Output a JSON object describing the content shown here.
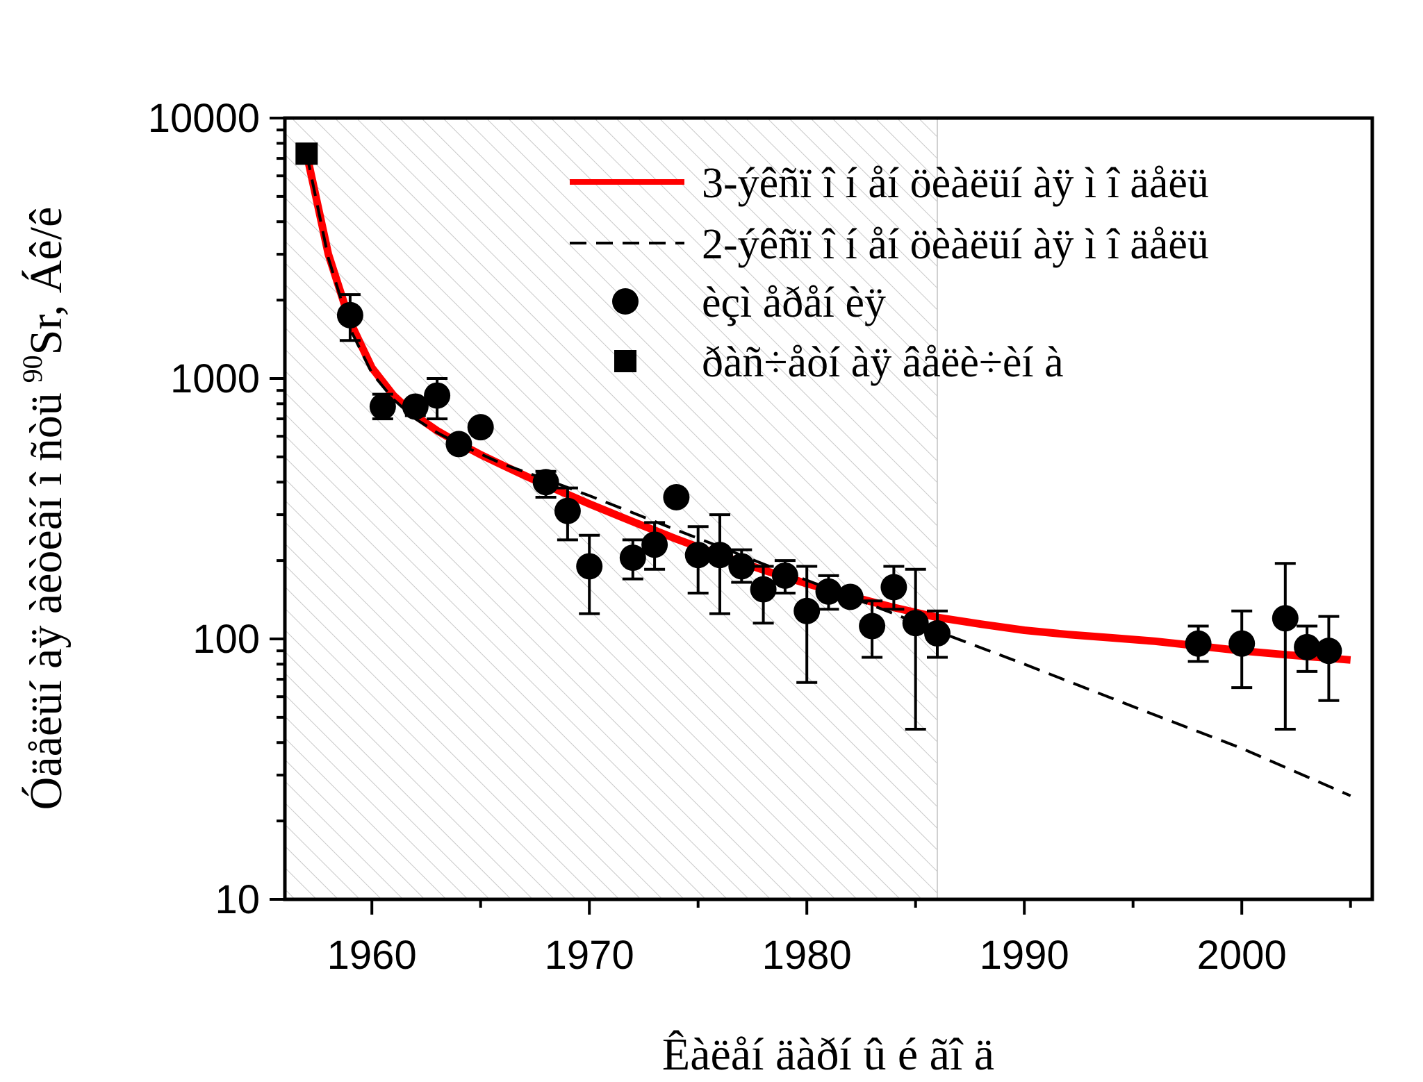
{
  "chart_data": {
    "type": "scatter",
    "title": "",
    "xlabel": "Êàëåí äàðí û é ãî ä",
    "ylabel": "Óäåëüí àÿ àêòèâí î ñòü",
    "ylabel_isotope_mass": "90",
    "ylabel_tail": "Sr, Áê/ê",
    "x_range": [
      1956,
      2006
    ],
    "x_ticks": [
      1960,
      1970,
      1980,
      1990,
      2000
    ],
    "y_scale": "log",
    "y_range": [
      10,
      10000
    ],
    "y_ticks": [
      10,
      100,
      1000,
      10000
    ],
    "grid": false,
    "hatched_region_x": [
      1956,
      1986
    ],
    "legend_position": "top-right",
    "series": [
      {
        "name": "3-ýêñï î í åí öèàëüí àÿ ì î äåëü",
        "kind": "line",
        "style": "solid",
        "color": "#ff0000",
        "x": [
          1957,
          1958,
          1959,
          1960,
          1961,
          1962,
          1963,
          1964,
          1965,
          1966,
          1967,
          1968,
          1970,
          1972,
          1974,
          1976,
          1978,
          1980,
          1982,
          1984,
          1986,
          1988,
          1990,
          1992,
          1994,
          1996,
          1998,
          2000,
          2002,
          2005
        ],
        "y": [
          7300,
          3000,
          1650,
          1100,
          860,
          720,
          630,
          565,
          510,
          465,
          425,
          390,
          330,
          282,
          242,
          210,
          184,
          163,
          146,
          132,
          121,
          114,
          108,
          104,
          101,
          98,
          94,
          90,
          87,
          83
        ]
      },
      {
        "name": "2-ýêñï î í åí öèàëüí àÿ ì î äåëü",
        "kind": "line",
        "style": "dashed",
        "color": "#000000",
        "x": [
          1957,
          1958,
          1959,
          1960,
          1961,
          1962,
          1963,
          1964,
          1966,
          1968,
          1970,
          1972,
          1974,
          1976,
          1978,
          1980,
          1982,
          1984,
          1986,
          1990,
          1995,
          2000,
          2005
        ],
        "y": [
          7300,
          2900,
          1550,
          1050,
          830,
          700,
          620,
          560,
          470,
          410,
          355,
          305,
          262,
          226,
          194,
          168,
          145,
          125,
          107,
          80,
          55,
          38,
          25
        ]
      },
      {
        "name": "èçì åðåí èÿ",
        "kind": "points",
        "marker": "circle",
        "color": "#000000",
        "points": [
          {
            "x": 1959,
            "y": 1750,
            "lo": 1400,
            "hi": 2100
          },
          {
            "x": 1960.5,
            "y": 780,
            "lo": 700,
            "hi": 870
          },
          {
            "x": 1962,
            "y": 780,
            "lo": 720,
            "hi": 830
          },
          {
            "x": 1963,
            "y": 860,
            "lo": 700,
            "hi": 1000
          },
          {
            "x": 1964,
            "y": 560
          },
          {
            "x": 1965,
            "y": 650
          },
          {
            "x": 1968,
            "y": 400,
            "lo": 350,
            "hi": 440
          },
          {
            "x": 1969,
            "y": 310,
            "lo": 240,
            "hi": 380
          },
          {
            "x": 1970,
            "y": 190,
            "lo": 125,
            "hi": 250
          },
          {
            "x": 1972,
            "y": 205,
            "lo": 170,
            "hi": 240
          },
          {
            "x": 1973,
            "y": 230,
            "lo": 185,
            "hi": 280
          },
          {
            "x": 1974,
            "y": 350
          },
          {
            "x": 1975,
            "y": 210,
            "lo": 150,
            "hi": 270
          },
          {
            "x": 1976,
            "y": 210,
            "lo": 125,
            "hi": 300
          },
          {
            "x": 1977,
            "y": 190,
            "lo": 165,
            "hi": 220
          },
          {
            "x": 1978,
            "y": 155,
            "lo": 115,
            "hi": 190
          },
          {
            "x": 1979,
            "y": 175,
            "lo": 150,
            "hi": 200
          },
          {
            "x": 1980,
            "y": 128,
            "lo": 68,
            "hi": 190
          },
          {
            "x": 1981,
            "y": 152,
            "lo": 130,
            "hi": 175
          },
          {
            "x": 1982,
            "y": 145
          },
          {
            "x": 1983,
            "y": 112,
            "lo": 85,
            "hi": 140
          },
          {
            "x": 1984,
            "y": 158,
            "lo": 130,
            "hi": 190
          },
          {
            "x": 1985,
            "y": 115,
            "lo": 45,
            "hi": 185
          },
          {
            "x": 1986,
            "y": 105,
            "lo": 85,
            "hi": 128
          },
          {
            "x": 1998,
            "y": 96,
            "lo": 82,
            "hi": 112
          },
          {
            "x": 2000,
            "y": 96,
            "lo": 65,
            "hi": 128
          },
          {
            "x": 2002,
            "y": 120,
            "lo": 45,
            "hi": 195
          },
          {
            "x": 2003,
            "y": 93,
            "lo": 75,
            "hi": 112
          },
          {
            "x": 2004,
            "y": 90,
            "lo": 58,
            "hi": 122
          }
        ]
      },
      {
        "name": "ðàñ÷åòí àÿ âåëè÷èí à",
        "kind": "points",
        "marker": "square",
        "color": "#000000",
        "points": [
          {
            "x": 1957,
            "y": 7300
          }
        ]
      }
    ]
  }
}
